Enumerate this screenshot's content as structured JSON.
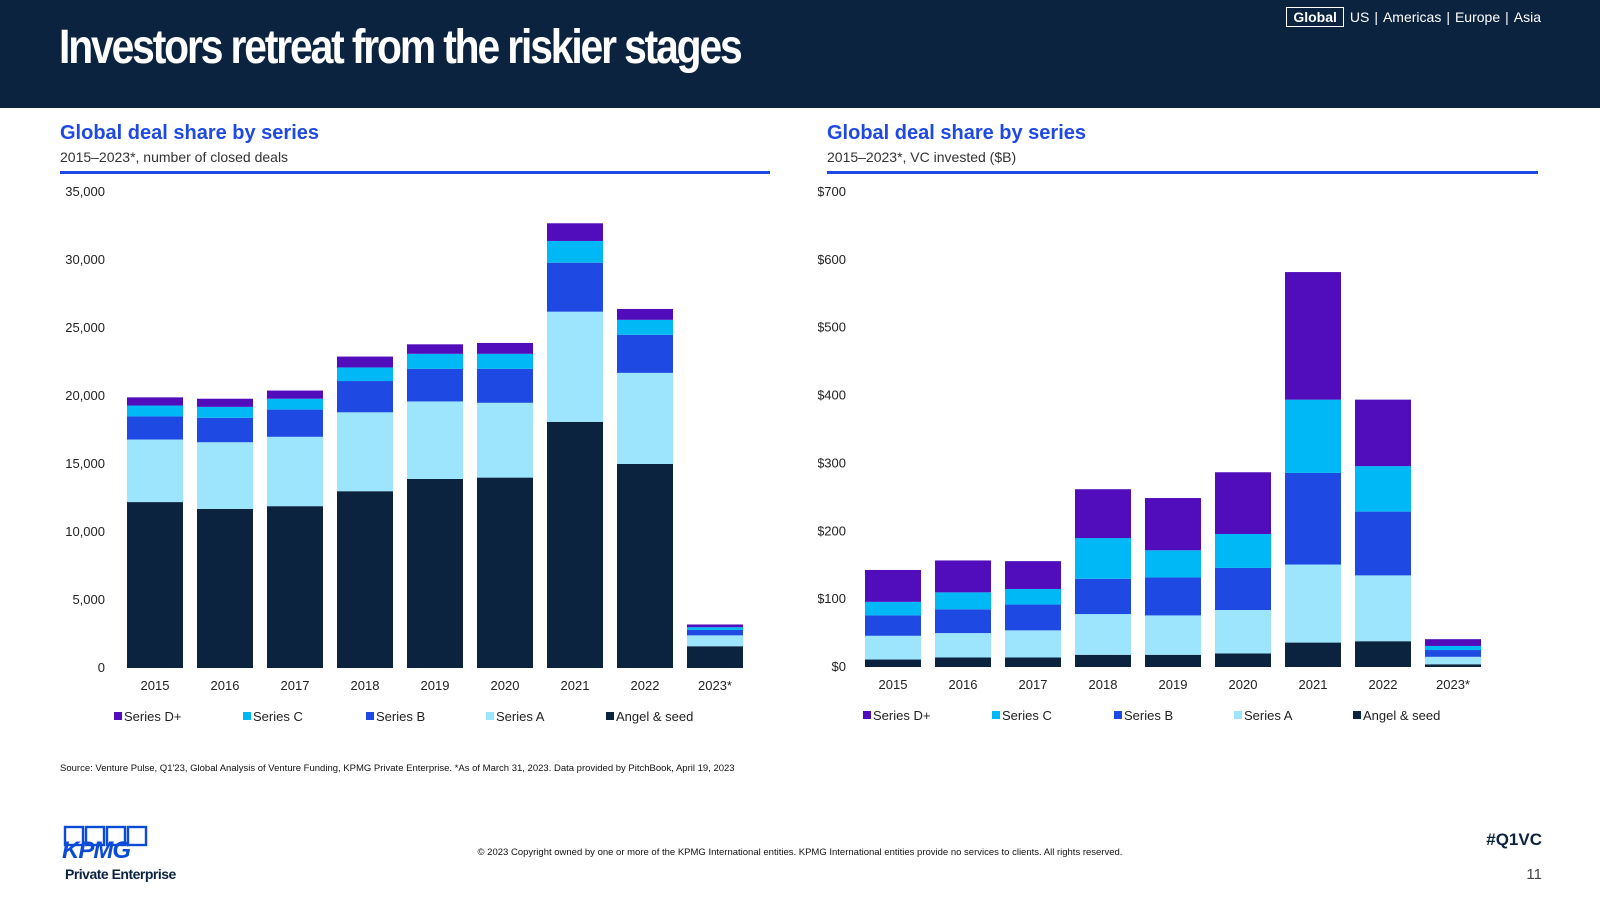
{
  "header": {
    "title": "Investors retreat from the riskier stages",
    "regions": {
      "active": "Global",
      "others": [
        "US",
        "Americas",
        "Europe",
        "Asia"
      ]
    }
  },
  "left_panel": {
    "title": "Global deal share by series",
    "subtitle": "2015–2023*, number of closed deals"
  },
  "right_panel": {
    "title": "Global deal share by series",
    "subtitle": "2015–2023*, VC invested ($B)"
  },
  "chart_data": [
    {
      "type": "bar",
      "stacked": true,
      "title": "Global deal share by series",
      "subtitle": "2015–2023*, number of closed deals",
      "categories": [
        "2015",
        "2016",
        "2017",
        "2018",
        "2019",
        "2020",
        "2021",
        "2022",
        "2023*"
      ],
      "ylim": [
        0,
        35000
      ],
      "yticks": [
        "0",
        "5,000",
        "10,000",
        "15,000",
        "20,000",
        "25,000",
        "30,000",
        "35,000"
      ],
      "legend_position": "bottom",
      "series": [
        {
          "name": "Angel & seed",
          "color": "#0c233f",
          "values": [
            12200,
            11700,
            11900,
            13000,
            13900,
            14000,
            18100,
            15000,
            1600
          ]
        },
        {
          "name": "Series A",
          "color": "#9de5fc",
          "values": [
            4600,
            4900,
            5100,
            5800,
            5700,
            5500,
            8100,
            6700,
            800
          ]
        },
        {
          "name": "Series B",
          "color": "#1e49e2",
          "values": [
            1700,
            1800,
            2000,
            2300,
            2400,
            2500,
            3600,
            2800,
            400
          ]
        },
        {
          "name": "Series C",
          "color": "#00b8f5",
          "values": [
            800,
            800,
            800,
            1000,
            1100,
            1100,
            1600,
            1100,
            200
          ]
        },
        {
          "name": "Series D+",
          "color": "#510dbc",
          "values": [
            600,
            600,
            600,
            800,
            700,
            800,
            1300,
            800,
            200
          ]
        }
      ],
      "legend_order": [
        "Series D+",
        "Series C",
        "Series B",
        "Series A",
        "Angel & seed"
      ]
    },
    {
      "type": "bar",
      "stacked": true,
      "title": "Global deal share by series",
      "subtitle": "2015–2023*, VC invested ($B)",
      "categories": [
        "2015",
        "2016",
        "2017",
        "2018",
        "2019",
        "2020",
        "2021",
        "2022",
        "2023*"
      ],
      "ylim": [
        0,
        700
      ],
      "yticks": [
        "$0",
        "$100",
        "$200",
        "$300",
        "$400",
        "$500",
        "$600",
        "$700"
      ],
      "legend_position": "bottom",
      "series": [
        {
          "name": "Angel & seed",
          "color": "#0c233f",
          "values": [
            11,
            14,
            14,
            18,
            18,
            20,
            36,
            38,
            4
          ]
        },
        {
          "name": "Series A",
          "color": "#9de5fc",
          "values": [
            35,
            36,
            40,
            60,
            58,
            64,
            115,
            97,
            11
          ]
        },
        {
          "name": "Series B",
          "color": "#1e49e2",
          "values": [
            30,
            35,
            38,
            52,
            56,
            62,
            135,
            94,
            10
          ]
        },
        {
          "name": "Series C",
          "color": "#00b8f5",
          "values": [
            20,
            25,
            23,
            60,
            40,
            50,
            108,
            67,
            6
          ]
        },
        {
          "name": "Series D+",
          "color": "#510dbc",
          "values": [
            47,
            47,
            41,
            72,
            77,
            91,
            188,
            98,
            10
          ]
        }
      ],
      "legend_order": [
        "Series D+",
        "Series C",
        "Series B",
        "Series A",
        "Angel & seed"
      ]
    }
  ],
  "footer": {
    "source": "Source: Venture Pulse, Q1'23, Global Analysis of Venture Funding, KPMG Private Enterprise. *As of March 31, 2023. Data provided by PitchBook, April 19, 2023",
    "copyright": "© 2023 Copyright owned by one or more of the KPMG International entities. KPMG International entities provide no services to clients. All rights reserved.",
    "hashtag": "#Q1VC",
    "page_number": "11",
    "logo_text": "KPMG",
    "logo_tagline": "Private Enterprise"
  }
}
